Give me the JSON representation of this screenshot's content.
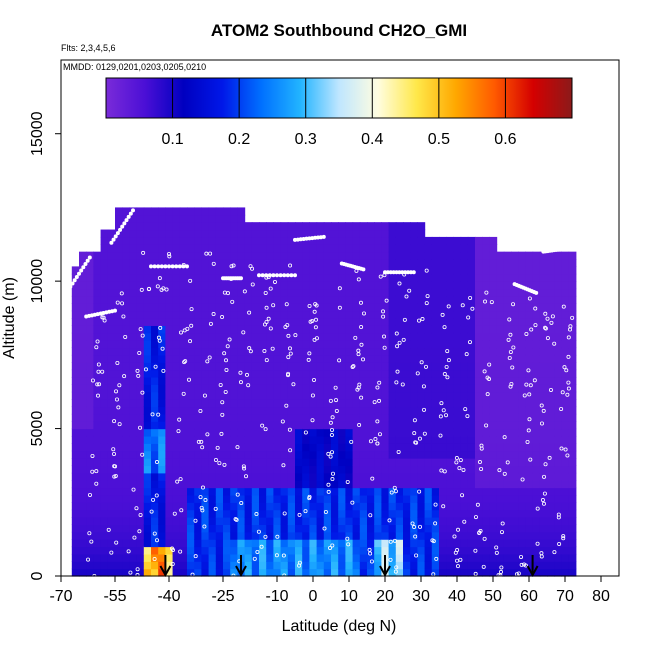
{
  "chart_data": {
    "type": "heatmap",
    "title": "ATOM2 Southbound CH2O_GMI",
    "subtitle_flights": "Flts: 2,3,4,5,6",
    "subtitle_dates": "MMDD: 0129,0201,0203,0205,0210",
    "xlabel": "Latitude (deg N)",
    "ylabel": "Altitude (m)",
    "xlim": [
      -70,
      85
    ],
    "ylim": [
      0,
      17500
    ],
    "x_ticks": [
      -70,
      -55,
      -40,
      -25,
      -10,
      0,
      10,
      20,
      30,
      40,
      50,
      60,
      70,
      80
    ],
    "x_tick_labels": [
      "-70",
      "-55",
      "-40",
      "-25",
      "-10",
      "0",
      "10",
      "20",
      "30",
      "40",
      "50",
      "60",
      "70",
      "80"
    ],
    "y_ticks": [
      0,
      5000,
      10000,
      15000
    ],
    "y_tick_labels": [
      "0",
      "5000",
      "10000",
      "15000"
    ],
    "colorbar": {
      "range": [
        0.0,
        0.7
      ],
      "ticks": [
        0.1,
        0.2,
        0.3,
        0.4,
        0.5,
        0.6
      ],
      "tick_labels": [
        "0.1",
        "0.2",
        "0.3",
        "0.4",
        "0.5",
        "0.6"
      ],
      "colors": [
        "#7a2bd9",
        "#4b0fd6",
        "#0000c0",
        "#0018e8",
        "#0070ff",
        "#22b4ff",
        "#bfe6ff",
        "#fffde0",
        "#ffe84a",
        "#ffa800",
        "#ff5a00",
        "#d40000",
        "#8c1a1a"
      ]
    },
    "arrows_latitude": [
      -41,
      -20,
      20,
      61
    ],
    "background_level": 0.05,
    "enhanced_regions": [
      {
        "lat_range": [
          -47,
          -42
        ],
        "alt_range": [
          0,
          8500
        ],
        "value": 0.2
      },
      {
        "lat_range": [
          -47,
          -42
        ],
        "alt_range": [
          3500,
          5000
        ],
        "value": 0.28
      },
      {
        "lat_range": [
          -46,
          -40
        ],
        "alt_range": [
          0,
          1000
        ],
        "value": 0.62
      },
      {
        "lat_range": [
          -35,
          35
        ],
        "alt_range": [
          0,
          3000
        ],
        "value": 0.22
      },
      {
        "lat_range": [
          -22,
          12
        ],
        "alt_range": [
          0,
          1200
        ],
        "value": 0.3
      },
      {
        "lat_range": [
          18,
          24
        ],
        "alt_range": [
          0,
          1300
        ],
        "value": 0.38
      },
      {
        "lat_range": [
          -5,
          10
        ],
        "alt_range": [
          2500,
          5000
        ],
        "value": 0.15
      }
    ],
    "grid": false,
    "legend": "colorbar top"
  }
}
